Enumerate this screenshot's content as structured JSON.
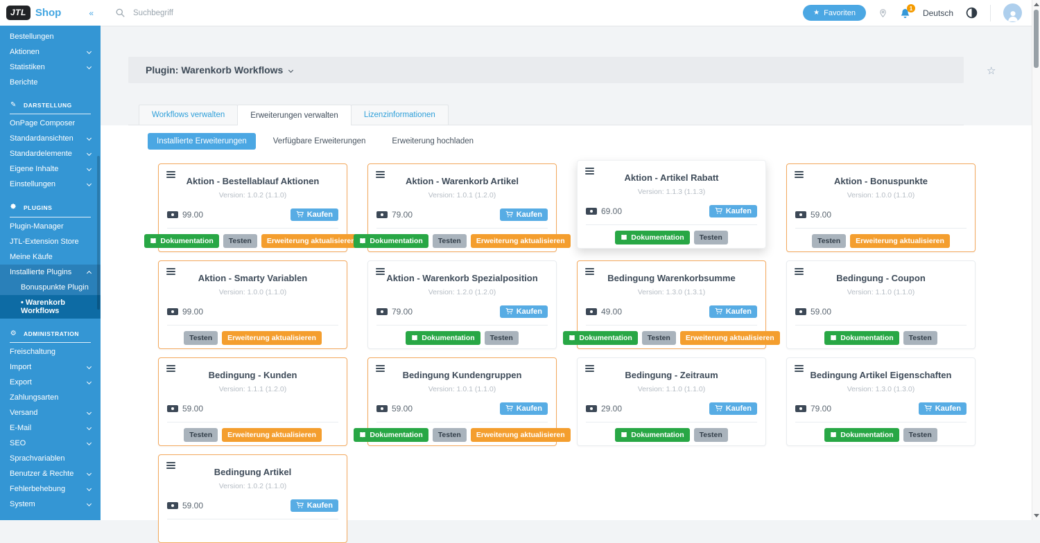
{
  "icons": {
    "star_filled": "★",
    "star_outline": "☆",
    "collapse": "«",
    "pencil": "✎",
    "gear": "⚙"
  },
  "colors": {
    "sidebar_blue": "#3496d4",
    "sidebar_group_blue": "#2a80b9",
    "sidebar_active_blue": "#0d6ba4",
    "accent_blue": "#4ba7e3",
    "highlight_orange": "#f3a85c",
    "button_orange": "#f49e2e",
    "button_green": "#28a745",
    "button_gray": "#a9b3bc",
    "badge_orange": "#f59b00"
  },
  "topbar": {
    "search_placeholder": "Suchbegriff",
    "favorites_label": "Favoriten",
    "language_label": "Deutsch",
    "notification_count": "1"
  },
  "sidebar": {
    "logo_text": "JTL",
    "brand_text": "Shop",
    "entries": [
      {
        "type": "item",
        "label": "Bestellungen"
      },
      {
        "type": "item",
        "label": "Aktionen",
        "chevron": "down"
      },
      {
        "type": "item",
        "label": "Statistiken",
        "chevron": "down"
      },
      {
        "type": "item",
        "label": "Berichte"
      },
      {
        "type": "header",
        "label": "DARSTELLUNG",
        "icon": "pencil-icon"
      },
      {
        "type": "item",
        "label": "OnPage Composer"
      },
      {
        "type": "item",
        "label": "Standardansichten",
        "chevron": "down"
      },
      {
        "type": "item",
        "label": "Standardelemente",
        "chevron": "down"
      },
      {
        "type": "item",
        "label": "Eigene Inhalte",
        "chevron": "down"
      },
      {
        "type": "item",
        "label": "Einstellungen",
        "chevron": "down"
      },
      {
        "type": "header",
        "label": "PLUGINS",
        "icon": "puzzle-icon"
      },
      {
        "type": "item",
        "label": "Plugin-Manager"
      },
      {
        "type": "item",
        "label": "JTL-Extension Store"
      },
      {
        "type": "item",
        "label": "Meine Käufe"
      },
      {
        "type": "item",
        "label": "Installierte Plugins",
        "chevron": "up",
        "dark": true
      },
      {
        "type": "item",
        "label": "Bonuspunkte Plugin",
        "indent": true,
        "dark": true
      },
      {
        "type": "item",
        "label": "Warenkorb Workflows",
        "indent": true,
        "dark": true,
        "active": true,
        "bullet": true
      },
      {
        "type": "header",
        "label": "ADMINISTRATION",
        "icon": "gear-icon"
      },
      {
        "type": "item",
        "label": "Freischaltung"
      },
      {
        "type": "item",
        "label": "Import",
        "chevron": "down"
      },
      {
        "type": "item",
        "label": "Export",
        "chevron": "down"
      },
      {
        "type": "item",
        "label": "Zahlungsarten"
      },
      {
        "type": "item",
        "label": "Versand",
        "chevron": "down"
      },
      {
        "type": "item",
        "label": "E-Mail",
        "chevron": "down"
      },
      {
        "type": "item",
        "label": "SEO",
        "chevron": "down"
      },
      {
        "type": "item",
        "label": "Sprachvariablen"
      },
      {
        "type": "item",
        "label": "Benutzer & Rechte",
        "chevron": "down"
      },
      {
        "type": "item",
        "label": "Fehlerbehebung",
        "chevron": "down"
      },
      {
        "type": "item",
        "label": "System",
        "chevron": "down"
      }
    ]
  },
  "page": {
    "title": "Plugin: Warenkorb Workflows",
    "tabs": [
      {
        "label": "Workflows verwalten",
        "active": false
      },
      {
        "label": "Erweiterungen verwalten",
        "active": true
      },
      {
        "label": "Lizenzinformationen",
        "active": false
      }
    ],
    "pills": [
      {
        "label": "Installierte Erweiterungen",
        "active": true
      },
      {
        "label": "Verfügbare Erweiterungen",
        "active": false
      },
      {
        "label": "Erweiterung hochladen",
        "active": false
      }
    ]
  },
  "card_labels": {
    "kaufen": "Kaufen",
    "doc": "Dokumentation",
    "test": "Testen",
    "update": "Erweiterung aktualisieren"
  },
  "cards": [
    {
      "title": "Aktion - Bestellablauf Aktionen",
      "version": "Version: 1.0.2 (1.1.0)",
      "price": "99.00",
      "kaufen": true,
      "actions": [
        "doc",
        "test",
        "update"
      ],
      "highlight": true,
      "elevated": false
    },
    {
      "title": "Aktion - Warenkorb Artikel",
      "version": "Version: 1.0.1 (1.2.0)",
      "price": "79.00",
      "kaufen": true,
      "actions": [
        "doc",
        "test",
        "update"
      ],
      "highlight": true,
      "elevated": false
    },
    {
      "title": "Aktion - Artikel Rabatt",
      "version": "Version: 1.1.3 (1.1.3)",
      "price": "69.00",
      "kaufen": true,
      "actions": [
        "doc",
        "test"
      ],
      "highlight": false,
      "elevated": true
    },
    {
      "title": "Aktion - Bonuspunkte",
      "version": "Version: 1.0.0 (1.1.0)",
      "price": "59.00",
      "kaufen": false,
      "actions": [
        "test",
        "update"
      ],
      "highlight": true,
      "elevated": false
    },
    {
      "title": "Aktion - Smarty Variablen",
      "version": "Version: 1.0.0 (1.1.0)",
      "price": "99.00",
      "kaufen": false,
      "actions": [
        "test",
        "update"
      ],
      "highlight": true,
      "elevated": false
    },
    {
      "title": "Aktion - Warenkorb Spezialposition",
      "version": "Version: 1.2.0 (1.2.0)",
      "price": "79.00",
      "kaufen": true,
      "actions": [
        "doc",
        "test"
      ],
      "highlight": false,
      "elevated": false
    },
    {
      "title": "Bedingung Warenkorbsumme",
      "version": "Version: 1.3.0 (1.3.1)",
      "price": "49.00",
      "kaufen": true,
      "actions": [
        "doc",
        "test",
        "update"
      ],
      "highlight": true,
      "elevated": false
    },
    {
      "title": "Bedingung - Coupon",
      "version": "Version: 1.1.0 (1.1.0)",
      "price": "59.00",
      "kaufen": false,
      "actions": [
        "doc",
        "test"
      ],
      "highlight": false,
      "elevated": false
    },
    {
      "title": "Bedingung - Kunden",
      "version": "Version: 1.1.1 (1.2.0)",
      "price": "59.00",
      "kaufen": false,
      "actions": [
        "test",
        "update"
      ],
      "highlight": true,
      "elevated": false
    },
    {
      "title": "Bedingung Kundengruppen",
      "version": "Version: 1.0.1 (1.1.0)",
      "price": "59.00",
      "kaufen": true,
      "actions": [
        "doc",
        "test",
        "update"
      ],
      "highlight": true,
      "elevated": false
    },
    {
      "title": "Bedingung - Zeitraum",
      "version": "Version: 1.1.0 (1.1.0)",
      "price": "29.00",
      "kaufen": true,
      "actions": [
        "doc",
        "test"
      ],
      "highlight": false,
      "elevated": false
    },
    {
      "title": "Bedingung Artikel Eigenschaften",
      "version": "Version: 1.3.0 (1.3.0)",
      "price": "79.00",
      "kaufen": true,
      "actions": [
        "doc",
        "test"
      ],
      "highlight": false,
      "elevated": false
    },
    {
      "title": "Bedingung Artikel",
      "version": "Version: 1.0.2 (1.1.0)",
      "price": "59.00",
      "kaufen": true,
      "actions": [],
      "highlight": true,
      "elevated": false
    }
  ]
}
